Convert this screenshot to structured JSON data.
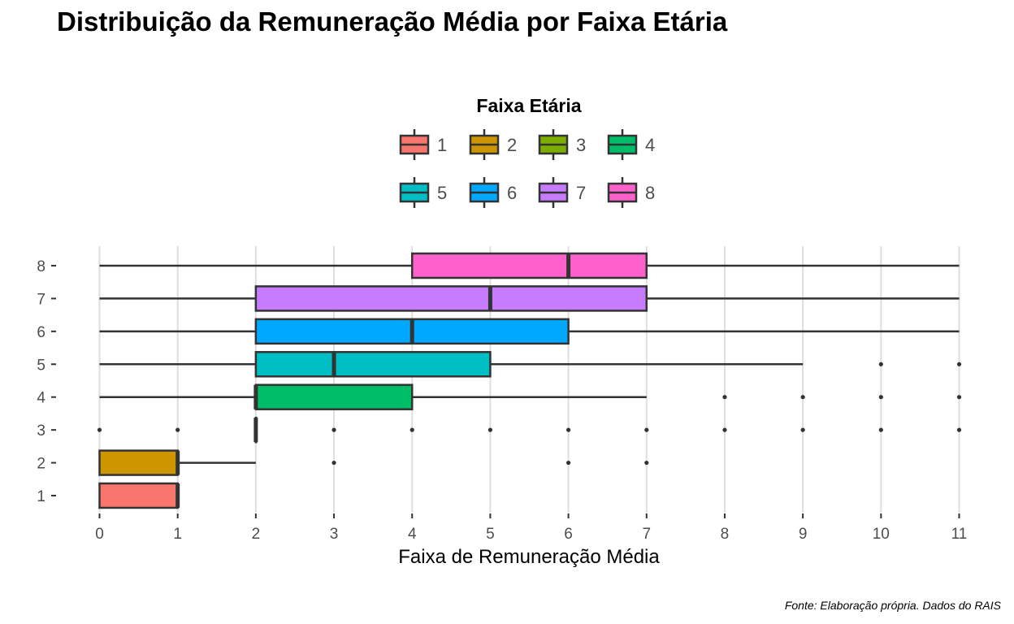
{
  "chart_data": {
    "type": "boxplot",
    "orientation": "horizontal",
    "title": "Distribuição da Remuneração Média por Faixa Etária",
    "xlabel": "Faixa de Remuneração Média",
    "ylabel": "",
    "xlim": [
      0,
      11
    ],
    "x_ticks": [
      "0",
      "1",
      "2",
      "3",
      "4",
      "5",
      "6",
      "7",
      "8",
      "9",
      "10",
      "11"
    ],
    "categories": [
      "1",
      "2",
      "3",
      "4",
      "5",
      "6",
      "7",
      "8"
    ],
    "legend": {
      "title": "Faixa Etária",
      "position": "top",
      "entries": [
        "1",
        "2",
        "3",
        "4",
        "5",
        "6",
        "7",
        "8"
      ]
    },
    "colors": [
      "#F8766D",
      "#CD9600",
      "#7CAE00",
      "#00BE67",
      "#00BFC4",
      "#00A9FF",
      "#C77CFF",
      "#FF61CC"
    ],
    "grid": "vertical",
    "series": [
      {
        "category": "1",
        "whisker_low": 0,
        "q1": 0,
        "median": 1,
        "q3": 1,
        "whisker_high": 1,
        "outliers": []
      },
      {
        "category": "2",
        "whisker_low": 0,
        "q1": 0,
        "median": 1,
        "q3": 1,
        "whisker_high": 2,
        "outliers": [
          3,
          6,
          7
        ]
      },
      {
        "category": "3",
        "whisker_low": 2,
        "q1": 2,
        "median": 2,
        "q3": 2,
        "whisker_high": 2,
        "outliers": [
          0,
          1,
          3,
          4,
          5,
          6,
          7,
          8,
          9,
          10,
          11
        ]
      },
      {
        "category": "4",
        "whisker_low": 0,
        "q1": 2,
        "median": 2,
        "q3": 4,
        "whisker_high": 7,
        "outliers": [
          8,
          9,
          10,
          11
        ]
      },
      {
        "category": "5",
        "whisker_low": 0,
        "q1": 2,
        "median": 3,
        "q3": 5,
        "whisker_high": 9,
        "outliers": [
          10,
          11
        ]
      },
      {
        "category": "6",
        "whisker_low": 0,
        "q1": 2,
        "median": 4,
        "q3": 6,
        "whisker_high": 11,
        "outliers": []
      },
      {
        "category": "7",
        "whisker_low": 0,
        "q1": 2,
        "median": 5,
        "q3": 7,
        "whisker_high": 11,
        "outliers": []
      },
      {
        "category": "8",
        "whisker_low": 0,
        "q1": 4,
        "median": 6,
        "q3": 7,
        "whisker_high": 11,
        "outliers": []
      }
    ]
  },
  "caption": "Fonte: Elaboração própria. Dados do RAIS"
}
